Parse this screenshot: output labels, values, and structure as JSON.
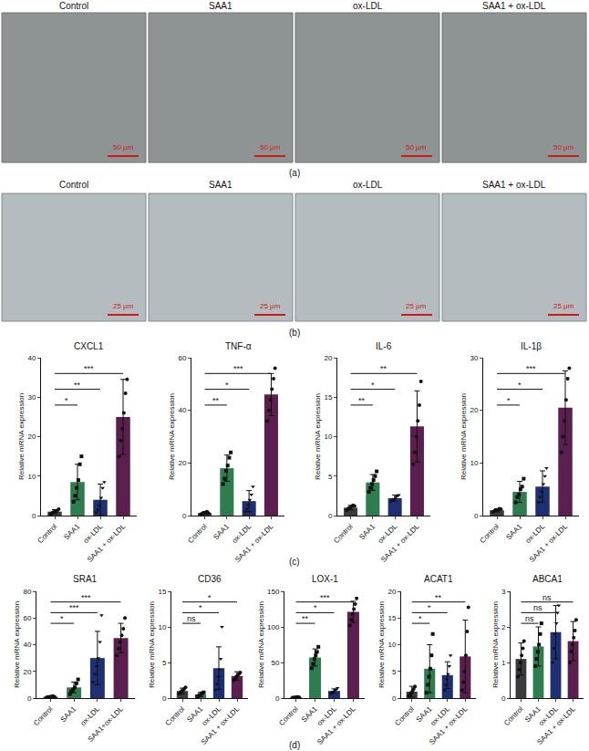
{
  "panel_labels": [
    "(a)",
    "(b)",
    "(c)",
    "(d)"
  ],
  "micrographs": [
    {
      "images": [
        {
          "title": "Control",
          "scale_bar": "50 μm"
        },
        {
          "title": "SAA1",
          "scale_bar": "50 μm"
        },
        {
          "title": "ox-LDL",
          "scale_bar": "50 μm"
        },
        {
          "title": "SAA1 + ox-LDL",
          "scale_bar": "50 μm"
        }
      ]
    },
    {
      "images": [
        {
          "title": "Control",
          "scale_bar": "25 μm"
        },
        {
          "title": "SAA1",
          "scale_bar": "25 μm"
        },
        {
          "title": "ox-LDL",
          "scale_bar": "25 μm"
        },
        {
          "title": "SAA1 + ox-LDL",
          "scale_bar": "25 μm"
        }
      ]
    }
  ],
  "chart_data": [
    {
      "type": "bar",
      "title": "CXCL1",
      "ylabel": "Relative mRNA expression",
      "categories": [
        "Control",
        "SAA1",
        "ox-LDL",
        "SAA1 + ox-LDL"
      ],
      "values": [
        1,
        8.5,
        4,
        25
      ],
      "error": [
        0.5,
        4.5,
        4,
        9.5
      ],
      "points": [
        [
          0.4,
          0.7,
          0.9,
          1.1,
          1.3,
          1.6
        ],
        [
          3.5,
          5,
          7,
          9,
          13,
          15
        ],
        [
          0.8,
          1.5,
          2.5,
          4.5,
          7,
          8.5
        ],
        [
          15,
          19,
          22,
          26,
          31,
          34.5
        ]
      ],
      "colors": [
        "#3b3b3b",
        "#2e7d4f",
        "#1f2f73",
        "#5a1f4e"
      ],
      "ylim": [
        0,
        40
      ],
      "yticks": [
        0,
        10,
        20,
        30,
        40
      ],
      "significance": [
        {
          "from": "Control",
          "to": "SAA1",
          "label": "*"
        },
        {
          "from": "Control",
          "to": "ox-LDL",
          "label": "**"
        },
        {
          "from": "Control",
          "to": "SAA1 + ox-LDL",
          "label": "***"
        }
      ]
    },
    {
      "type": "bar",
      "title": "TNF-α",
      "ylabel": "Relative mRNA expression",
      "categories": [
        "Control",
        "SAA1",
        "ox-LDL",
        "SAA1 + ox-LDL"
      ],
      "values": [
        1,
        18,
        5.5,
        46
      ],
      "error": [
        0.5,
        5,
        4,
        8
      ],
      "points": [
        [
          0.5,
          0.8,
          1,
          1.2,
          1.5,
          0.9
        ],
        [
          12,
          14,
          17,
          19,
          22,
          24
        ],
        [
          1.5,
          2.5,
          4,
          6,
          8,
          11
        ],
        [
          36,
          40,
          44,
          48,
          52,
          56
        ]
      ],
      "colors": [
        "#3b3b3b",
        "#2e7d4f",
        "#1f2f73",
        "#5a1f4e"
      ],
      "ylim": [
        0,
        60
      ],
      "yticks": [
        0,
        20,
        40,
        60
      ],
      "significance": [
        {
          "from": "Control",
          "to": "SAA1",
          "label": "**"
        },
        {
          "from": "Control",
          "to": "ox-LDL",
          "label": "*"
        },
        {
          "from": "Control",
          "to": "SAA1 + ox-LDL",
          "label": "***"
        }
      ]
    },
    {
      "type": "bar",
      "title": "IL-6",
      "ylabel": "Relative mRNA expression",
      "categories": [
        "Control",
        "SAA1",
        "ox-LDL",
        "SAA1 + ox-LDL"
      ],
      "values": [
        1,
        4.2,
        2.2,
        11.3
      ],
      "error": [
        0.3,
        1,
        0.4,
        4.5
      ],
      "points": [
        [
          0.7,
          0.9,
          1,
          1.1,
          1.3,
          1.2
        ],
        [
          3,
          3.5,
          4,
          4.5,
          5,
          5.6
        ],
        [
          1.8,
          2,
          2.1,
          2.3,
          2.5,
          2.6
        ],
        [
          6.5,
          8,
          10,
          12,
          14,
          17
        ]
      ],
      "colors": [
        "#3b3b3b",
        "#2e7d4f",
        "#1f2f73",
        "#5a1f4e"
      ],
      "ylim": [
        0,
        20
      ],
      "yticks": [
        0,
        5,
        10,
        15,
        20
      ],
      "significance": [
        {
          "from": "Control",
          "to": "SAA1",
          "label": "**"
        },
        {
          "from": "Control",
          "to": "ox-LDL",
          "label": "*"
        },
        {
          "from": "Control",
          "to": "SAA1 + ox-LDL",
          "label": "**"
        }
      ]
    },
    {
      "type": "bar",
      "title": "IL-1β",
      "ylabel": "Relative mRNA expression",
      "categories": [
        "Control",
        "SAA1",
        "ox-LDL",
        "SAA1 + ox-LDL"
      ],
      "values": [
        1,
        4.5,
        5.5,
        20.5
      ],
      "error": [
        0.3,
        2,
        3,
        7
      ],
      "points": [
        [
          0.7,
          0.9,
          1,
          1.1,
          1.3,
          1.2
        ],
        [
          2.5,
          3.5,
          4,
          5,
          5.5,
          7
        ],
        [
          2.5,
          3.5,
          4.5,
          6,
          7.5,
          9
        ],
        [
          12,
          15,
          18,
          22,
          26,
          28
        ]
      ],
      "colors": [
        "#3b3b3b",
        "#2e7d4f",
        "#1f2f73",
        "#5a1f4e"
      ],
      "ylim": [
        0,
        30
      ],
      "yticks": [
        0,
        10,
        20,
        30
      ],
      "significance": [
        {
          "from": "Control",
          "to": "SAA1",
          "label": "*"
        },
        {
          "from": "Control",
          "to": "ox-LDL",
          "label": "*"
        },
        {
          "from": "Control",
          "to": "SAA1 + ox-LDL",
          "label": "***"
        }
      ]
    },
    {
      "type": "bar",
      "title": "SRA1",
      "ylabel": "Relative mRNA expression",
      "categories": [
        "Control",
        "SAA1",
        "ox-LDL",
        "SAA1+ox-LDL"
      ],
      "values": [
        1,
        8,
        30,
        45
      ],
      "error": [
        0.5,
        4,
        20,
        11
      ],
      "points": [
        [
          0.5,
          0.8,
          1,
          1.2,
          1.5,
          0.9
        ],
        [
          3,
          5,
          6.5,
          8,
          11,
          14
        ],
        [
          12,
          18,
          24,
          30,
          42,
          62
        ],
        [
          32,
          37,
          42,
          47,
          52,
          60
        ]
      ],
      "colors": [
        "#3b3b3b",
        "#2e7d4f",
        "#1f2f73",
        "#5a1f4e"
      ],
      "ylim": [
        0,
        80
      ],
      "yticks": [
        0,
        20,
        40,
        60,
        80
      ],
      "significance": [
        {
          "from": "Control",
          "to": "SAA1",
          "label": "*"
        },
        {
          "from": "Control",
          "to": "ox-LDL",
          "label": "***"
        },
        {
          "from": "Control",
          "to": "SAA1+ox-LDL",
          "label": "***"
        }
      ]
    },
    {
      "type": "bar",
      "title": "CD36",
      "ylabel": "Relative mRNA expression",
      "categories": [
        "Control",
        "SAA1",
        "ox-LDL",
        "SAA1 + ox-LDL"
      ],
      "values": [
        1,
        0.5,
        4.2,
        3.1
      ],
      "error": [
        0.4,
        0.3,
        3,
        0.6
      ],
      "points": [
        [
          0.6,
          0.8,
          1,
          1.1,
          1.3,
          1.5
        ],
        [
          0.2,
          0.3,
          0.4,
          0.6,
          0.7,
          0.8
        ],
        [
          1.2,
          2,
          3,
          4,
          5.5,
          10
        ],
        [
          2.5,
          2.7,
          3,
          3.2,
          3.4,
          3.6
        ]
      ],
      "colors": [
        "#3b3b3b",
        "#2e7d4f",
        "#1f2f73",
        "#5a1f4e"
      ],
      "ylim": [
        0,
        15
      ],
      "yticks": [
        0,
        5,
        10,
        15
      ],
      "significance": [
        {
          "from": "Control",
          "to": "SAA1",
          "label": "ns"
        },
        {
          "from": "Control",
          "to": "ox-LDL",
          "label": "*"
        },
        {
          "from": "Control",
          "to": "SAA1 + ox-LDL",
          "label": "*"
        }
      ]
    },
    {
      "type": "bar",
      "title": "LOX-1",
      "ylabel": "Relative mRNA expression",
      "categories": [
        "Control",
        "SAA1",
        "ox-LDL",
        "SAA1 + ox-LDL"
      ],
      "values": [
        1,
        57,
        10,
        121
      ],
      "error": [
        0.5,
        12,
        3,
        15
      ],
      "points": [
        [
          0.5,
          0.8,
          1,
          1.2,
          1.5,
          0.9
        ],
        [
          42,
          48,
          55,
          60,
          65,
          72
        ],
        [
          6,
          8,
          9,
          11,
          12,
          14
        ],
        [
          102,
          110,
          118,
          125,
          132,
          140
        ]
      ],
      "colors": [
        "#3b3b3b",
        "#2e7d4f",
        "#1f2f73",
        "#5a1f4e"
      ],
      "ylim": [
        0,
        150
      ],
      "yticks": [
        0,
        50,
        100,
        150
      ],
      "significance": [
        {
          "from": "Control",
          "to": "SAA1",
          "label": "**"
        },
        {
          "from": "Control",
          "to": "ox-LDL",
          "label": "*"
        },
        {
          "from": "Control",
          "to": "SAA1 + ox-LDL",
          "label": "***"
        }
      ]
    },
    {
      "type": "bar",
      "title": "ACAT1",
      "ylabel": "Relative mRNA expression",
      "categories": [
        "Control",
        "SAA1",
        "ox-LDL",
        "SAA1 + ox-LDL"
      ],
      "values": [
        1.2,
        5.5,
        4.3,
        7.8
      ],
      "error": [
        1,
        4.5,
        2.5,
        6.8
      ],
      "points": [
        [
          0.4,
          0.6,
          1,
          1.3,
          1.7,
          2.2
        ],
        [
          1,
          2.5,
          4,
          5.5,
          8,
          12
        ],
        [
          1.5,
          2.5,
          3.5,
          4.5,
          6,
          8
        ],
        [
          1.5,
          3,
          5,
          8,
          12.5,
          17
        ]
      ],
      "colors": [
        "#3b3b3b",
        "#2e7d4f",
        "#1f2f73",
        "#5a1f4e"
      ],
      "ylim": [
        0,
        20
      ],
      "yticks": [
        0,
        5,
        10,
        15,
        20
      ],
      "significance": [
        {
          "from": "Control",
          "to": "SAA1",
          "label": "*"
        },
        {
          "from": "Control",
          "to": "ox-LDL",
          "label": "*"
        },
        {
          "from": "Control",
          "to": "SAA1 + ox-LDL",
          "label": "**"
        }
      ]
    },
    {
      "type": "bar",
      "title": "ABCA1",
      "ylabel": "Relative mRNA expression",
      "categories": [
        "Control",
        "SAA1",
        "ox-LDL",
        "SAA1 + ox-LDL"
      ],
      "values": [
        1.1,
        1.45,
        1.85,
        1.6
      ],
      "error": [
        0.45,
        0.55,
        0.75,
        0.55
      ],
      "points": [
        [
          0.6,
          0.8,
          1,
          1.2,
          1.4,
          1.6
        ],
        [
          0.9,
          1.1,
          1.3,
          1.5,
          1.8,
          2.1
        ],
        [
          1,
          1.4,
          1.8,
          2.1,
          2.4,
          2.6
        ],
        [
          1,
          1.3,
          1.5,
          1.7,
          1.9,
          2.2
        ]
      ],
      "colors": [
        "#3b3b3b",
        "#2e7d4f",
        "#1f2f73",
        "#5a1f4e"
      ],
      "ylim": [
        0,
        3
      ],
      "yticks": [
        0,
        1,
        2,
        3
      ],
      "significance": [
        {
          "from": "Control",
          "to": "SAA1",
          "label": "ns"
        },
        {
          "from": "Control",
          "to": "ox-LDL",
          "label": "ns"
        },
        {
          "from": "Control",
          "to": "SAA1 + ox-LDL",
          "label": "ns"
        }
      ]
    }
  ]
}
